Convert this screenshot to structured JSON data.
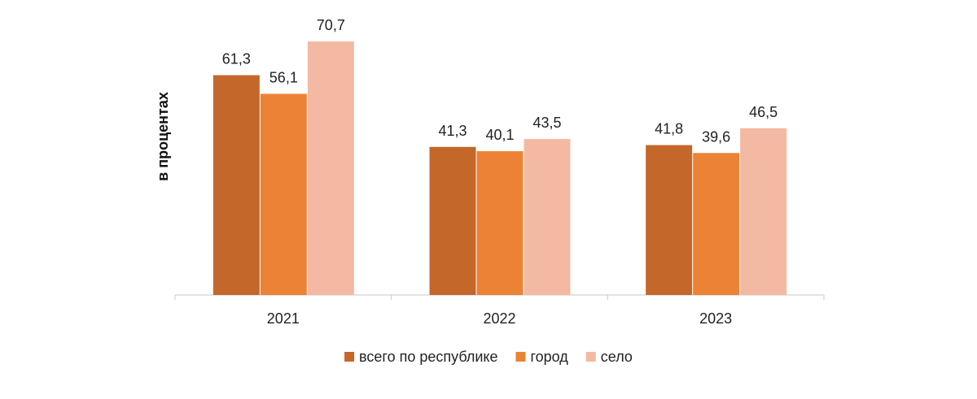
{
  "chart_data": {
    "type": "bar",
    "ylabel": "в процентах",
    "xlabel": "",
    "categories": [
      "2021",
      "2022",
      "2023"
    ],
    "series": [
      {
        "name": "всего по республике",
        "values": [
          61.3,
          41.3,
          41.8
        ],
        "color": "#c4672a",
        "labels": [
          "61,3",
          "41,3",
          "41,8"
        ]
      },
      {
        "name": "город",
        "values": [
          56.1,
          40.1,
          39.6
        ],
        "color": "#ec8236",
        "labels": [
          "56,1",
          "40,1",
          "39,6"
        ]
      },
      {
        "name": "село",
        "values": [
          70.7,
          43.5,
          46.5
        ],
        "color": "#f4b9a2",
        "labels": [
          "70,7",
          "43,5",
          "46,5"
        ]
      }
    ],
    "ylim": [
      0,
      80
    ],
    "grid": false,
    "legend_position": "bottom",
    "axis_color": "#c8c8c8"
  }
}
